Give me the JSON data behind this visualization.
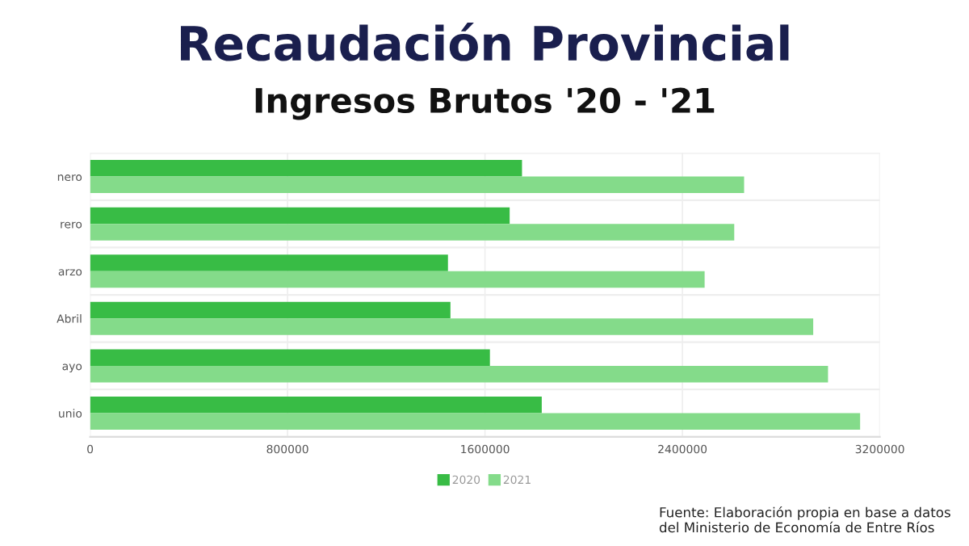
{
  "chart_data": {
    "type": "bar",
    "orientation": "horizontal",
    "title": "Recaudación Provincial",
    "subtitle": "Ingresos Brutos '20 - '21",
    "categories": [
      "nero",
      "rero",
      "arzo",
      "Abril",
      "ayo",
      "unio"
    ],
    "series": [
      {
        "name": "2020",
        "color": "#38bc45",
        "values": [
          1750000,
          1700000,
          1450000,
          1460000,
          1620000,
          1830000
        ]
      },
      {
        "name": "2021",
        "color": "#84db8a",
        "values": [
          2650000,
          2610000,
          2490000,
          2930000,
          2990000,
          3120000
        ]
      }
    ],
    "xlim": [
      0,
      3200000
    ],
    "xticks": [
      0,
      800000,
      1600000,
      2400000,
      3200000
    ],
    "grid": "x",
    "legend": "bottom",
    "annotations": [
      "Fuente: Elaboración propia en base a datos del Ministerio de Economía de Entre Ríos"
    ]
  }
}
